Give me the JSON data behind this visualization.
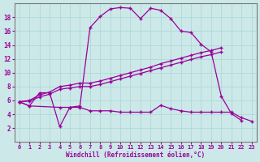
{
  "xlabel": "Windchill (Refroidissement éolien,°C)",
  "background_color": "#cce8e8",
  "grid_color": "#b0d8d8",
  "line_color": "#990099",
  "x_values": [
    0,
    1,
    2,
    3,
    4,
    5,
    6,
    7,
    8,
    9,
    10,
    11,
    12,
    13,
    14,
    15,
    16,
    17,
    18,
    19,
    20,
    21,
    22,
    23
  ],
  "curve_main": [
    5.8,
    5.2,
    7.1,
    7.1,
    2.2,
    5.0,
    5.2,
    16.5,
    18.1,
    19.2,
    19.4,
    19.3,
    17.8,
    19.3,
    19.0,
    17.8,
    16.0,
    15.8,
    14.1,
    13.0,
    6.6,
    4.1,
    3.1,
    null
  ],
  "curve_flat": [
    5.8,
    5.2,
    null,
    null,
    5.0,
    5.0,
    5.0,
    4.5,
    4.5,
    4.5,
    4.3,
    4.3,
    4.3,
    4.3,
    5.3,
    4.8,
    4.5,
    4.3,
    4.3,
    4.3,
    4.3,
    4.3,
    3.5,
    3.0
  ],
  "curve_linear1": [
    5.8,
    6.0,
    6.8,
    7.2,
    8.0,
    8.2,
    8.5,
    8.5,
    8.8,
    9.2,
    9.6,
    10.0,
    10.4,
    10.8,
    11.3,
    11.7,
    12.1,
    12.5,
    12.9,
    13.2,
    13.6,
    null,
    null,
    null
  ],
  "curve_linear2": [
    5.8,
    5.9,
    6.5,
    6.9,
    7.6,
    7.8,
    8.0,
    8.0,
    8.3,
    8.7,
    9.1,
    9.5,
    9.9,
    10.3,
    10.7,
    11.1,
    11.5,
    11.9,
    12.3,
    12.6,
    13.0,
    null,
    null,
    null
  ],
  "ylim": [
    0,
    20
  ],
  "xlim": [
    -0.5,
    23.5
  ],
  "yticks": [
    2,
    4,
    6,
    8,
    10,
    12,
    14,
    16,
    18
  ],
  "xticks": [
    0,
    1,
    2,
    3,
    4,
    5,
    6,
    7,
    8,
    9,
    10,
    11,
    12,
    13,
    14,
    15,
    16,
    17,
    18,
    19,
    20,
    21,
    22,
    23
  ]
}
